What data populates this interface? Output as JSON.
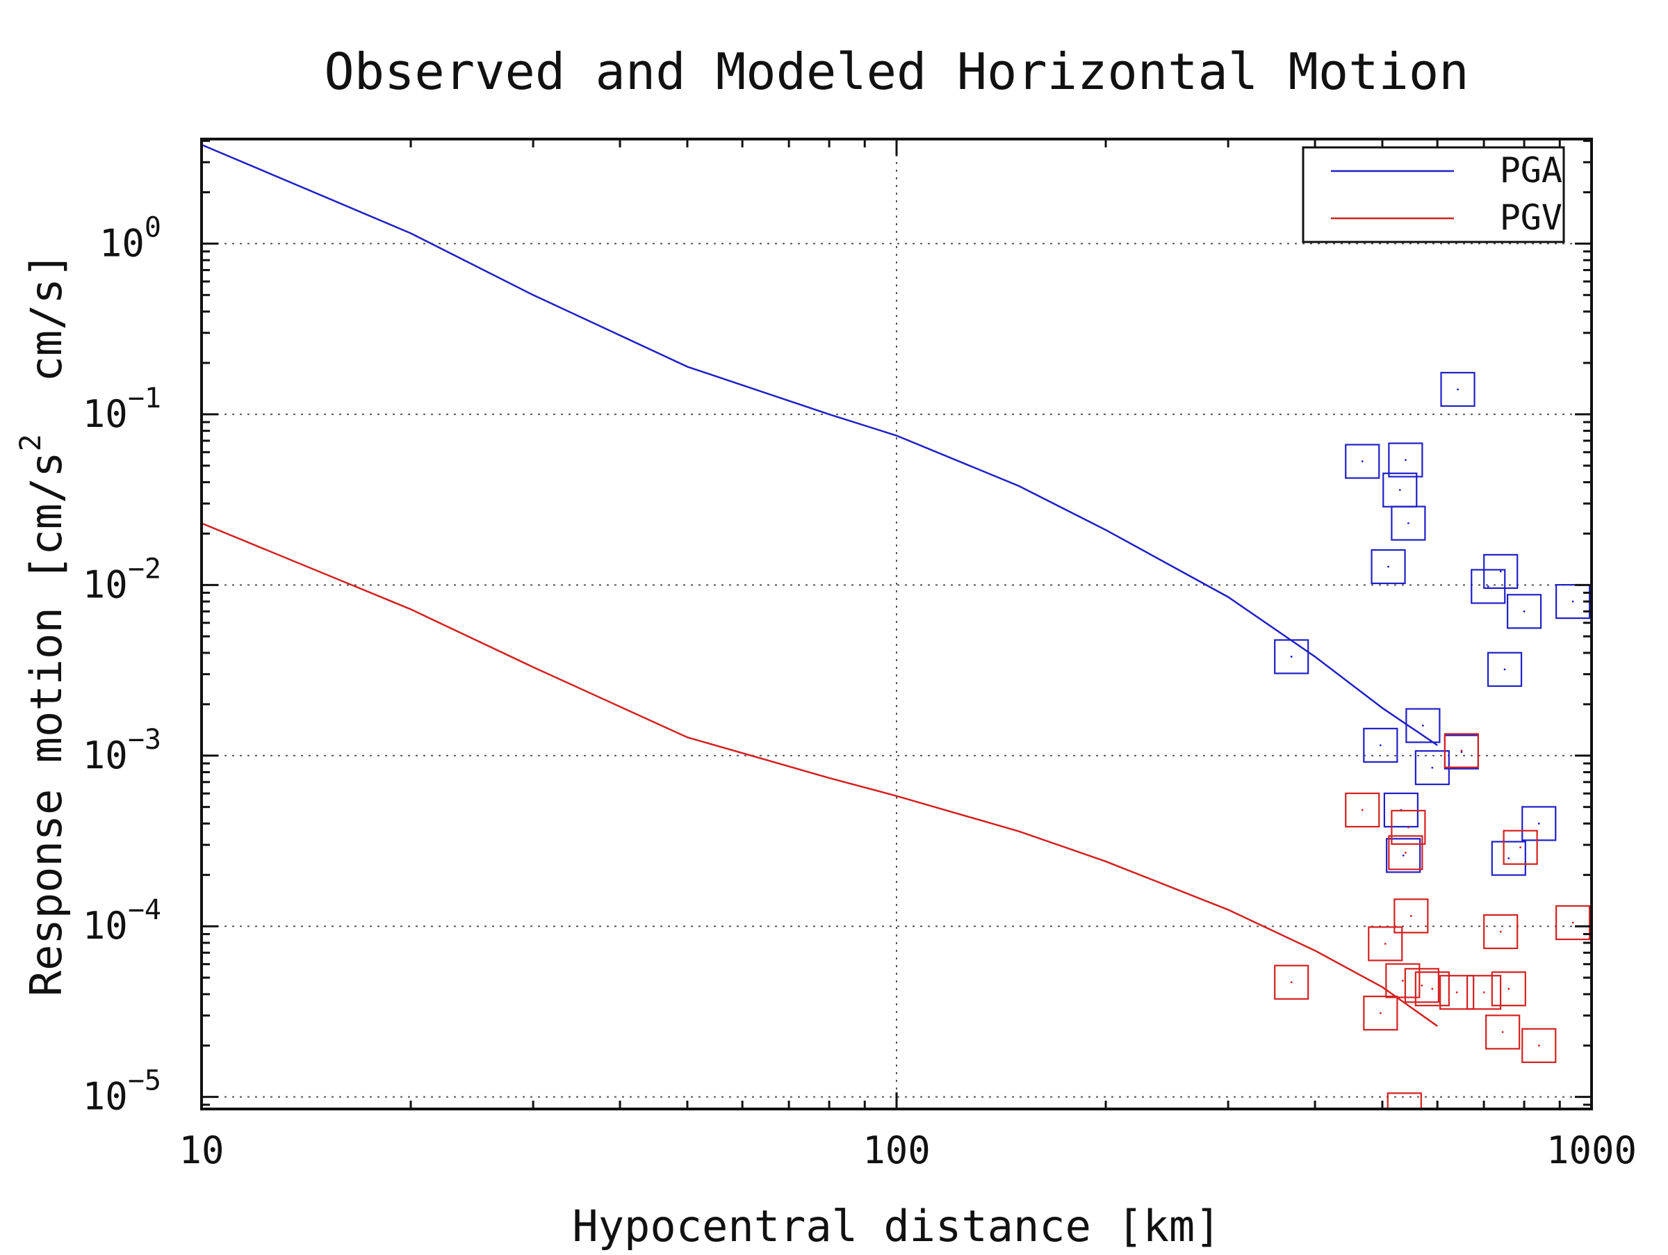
{
  "chart_data": {
    "type": "scatter",
    "title": "Observed and Modeled Horizontal Motion",
    "xlabel": "Hypocentral distance [km]",
    "ylabel": "Response motion [cm/s",
    "ylabel_sup": "2",
    "ylabel_suffix": "  cm/s]",
    "x_scale": "log",
    "y_scale": "log",
    "xlim": [
      10,
      1000
    ],
    "ylim": [
      8.5e-06,
      4.1
    ],
    "x_ticks": [
      {
        "value": 10,
        "label": "10"
      },
      {
        "value": 100,
        "label": "100"
      },
      {
        "value": 1000,
        "label": "1000"
      }
    ],
    "y_ticks": [
      {
        "value": 1,
        "base": "10",
        "exp": "0"
      },
      {
        "value": 0.1,
        "base": "10",
        "exp": "−1"
      },
      {
        "value": 0.01,
        "base": "10",
        "exp": "−2"
      },
      {
        "value": 0.001,
        "base": "10",
        "exp": "−3"
      },
      {
        "value": 0.0001,
        "base": "10",
        "exp": "−4"
      },
      {
        "value": 1e-05,
        "base": "10",
        "exp": "−5"
      }
    ],
    "grid": true,
    "legend_position": "top-right",
    "series": [
      {
        "name": "PGA",
        "kind": "line",
        "color": "#1f1fc8",
        "x": [
          10,
          20,
          30,
          50,
          80,
          100,
          150,
          200,
          300,
          400,
          500,
          600
        ],
        "y": [
          3.8,
          1.15,
          0.5,
          0.19,
          0.1,
          0.075,
          0.038,
          0.021,
          0.0085,
          0.0038,
          0.0019,
          0.00115
        ]
      },
      {
        "name": "PGV",
        "kind": "line",
        "color": "#d42020",
        "x": [
          10,
          20,
          30,
          50,
          80,
          100,
          150,
          200,
          300,
          400,
          500,
          600
        ],
        "y": [
          0.023,
          0.0072,
          0.0033,
          0.00128,
          0.00074,
          0.00058,
          0.00036,
          0.00024,
          0.000125,
          7.2e-05,
          4.4e-05,
          2.6e-05
        ]
      },
      {
        "name": "",
        "kind": "markers",
        "color": "#1f1fc8",
        "points": [
          [
            370,
            0.0038
          ],
          [
            468,
            0.053
          ],
          [
            497,
            0.00115
          ],
          [
            510,
            0.0128
          ],
          [
            530,
            0.036
          ],
          [
            532,
            0.00048
          ],
          [
            536,
            0.00026
          ],
          [
            540,
            0.054
          ],
          [
            545,
            0.023
          ],
          [
            572,
            0.0015
          ],
          [
            590,
            0.00085
          ],
          [
            642,
            0.14
          ],
          [
            650,
            0.00105
          ],
          [
            710,
            0.0098
          ],
          [
            740,
            0.012
          ],
          [
            750,
            0.0032
          ],
          [
            760,
            0.00025
          ],
          [
            800,
            0.007
          ],
          [
            840,
            0.0004
          ],
          [
            940,
            0.008
          ]
        ]
      },
      {
        "name": "",
        "kind": "markers",
        "color": "#d42020",
        "points": [
          [
            370,
            4.7e-05
          ],
          [
            468,
            0.00048
          ],
          [
            497,
            3.1e-05
          ],
          [
            505,
            7.9e-05
          ],
          [
            535,
            4.8e-05
          ],
          [
            538,
            8.4e-06
          ],
          [
            540,
            0.00027
          ],
          [
            545,
            0.00038
          ],
          [
            550,
            0.000115
          ],
          [
            570,
            4.5e-05
          ],
          [
            590,
            4.3e-05
          ],
          [
            640,
            4.1e-05
          ],
          [
            650,
            0.00107
          ],
          [
            700,
            4.1e-05
          ],
          [
            740,
            9.3e-05
          ],
          [
            745,
            2.4e-05
          ],
          [
            760,
            4.3e-05
          ],
          [
            790,
            0.00029
          ],
          [
            840,
            2e-05
          ],
          [
            940,
            0.000105
          ]
        ]
      }
    ]
  }
}
